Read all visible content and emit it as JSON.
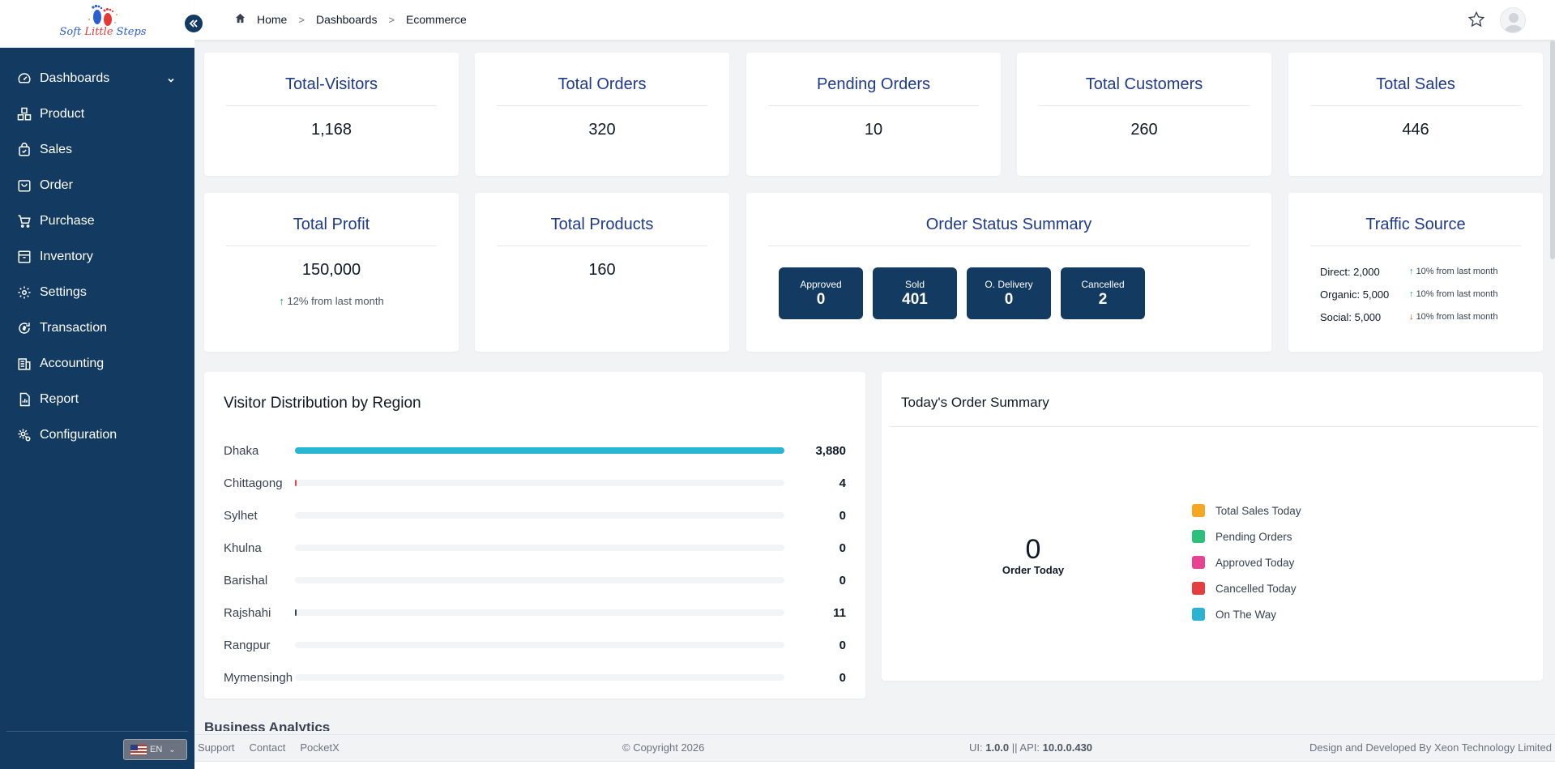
{
  "brand": {
    "name_part1": "Soft ",
    "name_part2": "Little",
    "name_part3": " Steps",
    "icon": "footprints-logo"
  },
  "sidebar": {
    "items": [
      {
        "label": "Dashboards",
        "icon": "dashboard-icon"
      },
      {
        "label": "Product",
        "icon": "boxes-icon"
      },
      {
        "label": "Sales",
        "icon": "shopping-bag-icon"
      },
      {
        "label": "Order",
        "icon": "bag-icon"
      },
      {
        "label": "Purchase",
        "icon": "cart-icon"
      },
      {
        "label": "Inventory",
        "icon": "archive-icon"
      },
      {
        "label": "Settings",
        "icon": "gear-icon"
      },
      {
        "label": "Transaction",
        "icon": "refresh-money-icon"
      },
      {
        "label": "Accounting",
        "icon": "accounting-icon"
      },
      {
        "label": "Report",
        "icon": "report-icon"
      },
      {
        "label": "Configuration",
        "icon": "gear-config-icon"
      }
    ],
    "language": "EN"
  },
  "breadcrumb": {
    "home": "Home",
    "section": "Dashboards",
    "page": "Ecommerce"
  },
  "stats_row1": [
    {
      "title": "Total-Visitors",
      "value": "1,168"
    },
    {
      "title": "Total Orders",
      "value": "320"
    },
    {
      "title": "Pending Orders",
      "value": "10"
    },
    {
      "title": "Total Customers",
      "value": "260"
    },
    {
      "title": "Total Sales",
      "value": "446"
    }
  ],
  "profit": {
    "title": "Total Profit",
    "value": "150,000",
    "change": "12% from last month",
    "direction": "up"
  },
  "products": {
    "title": "Total Products",
    "value": "160"
  },
  "order_status": {
    "title": "Order Status Summary",
    "items": [
      {
        "label": "Approved",
        "value": "0"
      },
      {
        "label": "Sold",
        "value": "401"
      },
      {
        "label": "O. Delivery",
        "value": "0"
      },
      {
        "label": "Cancelled",
        "value": "2"
      }
    ]
  },
  "traffic": {
    "title": "Traffic Source",
    "rows": [
      {
        "source": "Direct: 2,000",
        "change": "10% from last month",
        "direction": "up"
      },
      {
        "source": "Organic: 5,000",
        "change": "10% from last month",
        "direction": "up"
      },
      {
        "source": "Social: 5,000",
        "change": "10% from last month",
        "direction": "down"
      }
    ]
  },
  "regions": {
    "title": "Visitor Distribution by Region",
    "max": 3880,
    "rows": [
      {
        "name": "Dhaka",
        "value": "3,880",
        "count": 3880,
        "color": "#29b6d3"
      },
      {
        "name": "Chittagong",
        "value": "4",
        "count": 4,
        "color": "#ef4444"
      },
      {
        "name": "Sylhet",
        "value": "0",
        "count": 0,
        "color": "#9ca3af"
      },
      {
        "name": "Khulna",
        "value": "0",
        "count": 0,
        "color": "#9ca3af"
      },
      {
        "name": "Barishal",
        "value": "0",
        "count": 0,
        "color": "#9ca3af"
      },
      {
        "name": "Rajshahi",
        "value": "11",
        "count": 11,
        "color": "#374151"
      },
      {
        "name": "Rangpur",
        "value": "0",
        "count": 0,
        "color": "#9ca3af"
      },
      {
        "name": "Mymensingh",
        "value": "0",
        "count": 0,
        "color": "#9ca3af"
      }
    ]
  },
  "order_summary": {
    "title": "Today's Order Summary",
    "count": "0",
    "count_label": "Order Today",
    "legend": [
      {
        "label": "Total Sales Today",
        "color": "#f5a623"
      },
      {
        "label": "Pending Orders",
        "color": "#2ebf7a"
      },
      {
        "label": "Approved Today",
        "color": "#e84393"
      },
      {
        "label": "Cancelled Today",
        "color": "#e53e3e"
      },
      {
        "label": "On The Way",
        "color": "#2bb3d1"
      }
    ]
  },
  "next_section": "Business Analytics",
  "footer": {
    "links": [
      "Support",
      "Contact",
      "PocketX"
    ],
    "copyright": "© Copyright 2026",
    "ui_label": "UI: ",
    "ui_version": "1.0.0",
    "api_label": " || API: ",
    "api_version": "10.0.0.430",
    "credit_prefix": "Design and Developed By ",
    "credit_company": "Xeon Technology Limited"
  }
}
